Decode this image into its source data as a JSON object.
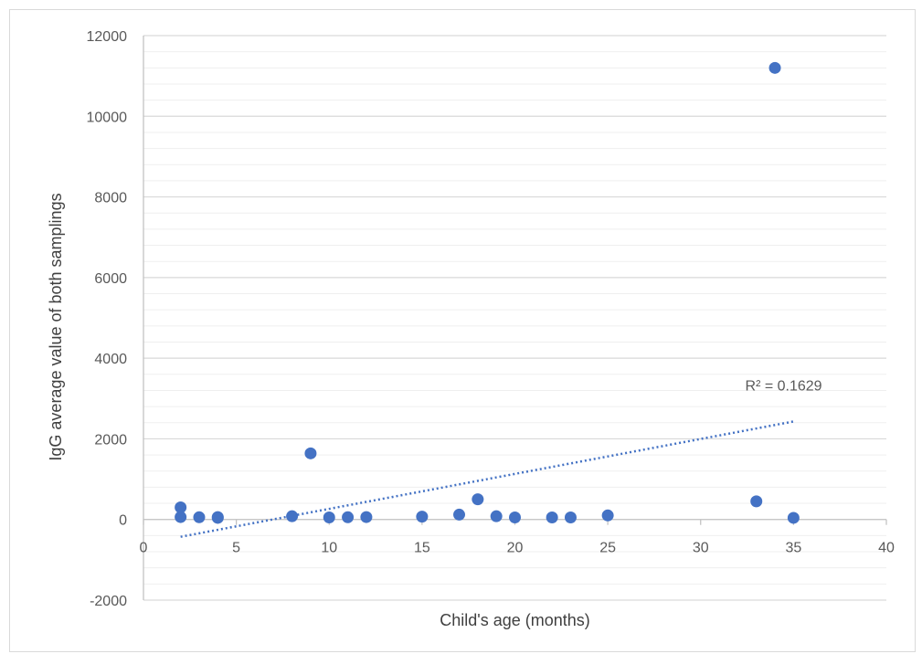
{
  "chart_data": {
    "type": "scatter",
    "xlabel": "Child's age (months)",
    "ylabel": "IgG average value of both samplings",
    "xlim": [
      0,
      40
    ],
    "ylim": [
      -2000,
      12000
    ],
    "x_ticks": [
      0,
      5,
      10,
      15,
      20,
      25,
      30,
      35,
      40
    ],
    "y_ticks": [
      -2000,
      0,
      2000,
      4000,
      6000,
      8000,
      10000,
      12000
    ],
    "x_tick_labels": [
      "0",
      "5",
      "10",
      "15",
      "20",
      "25",
      "30",
      "35",
      "40"
    ],
    "y_tick_labels": [
      "-2000",
      "0",
      "2000",
      "4000",
      "6000",
      "8000",
      "10000",
      "12000"
    ],
    "y_minor_step": 400,
    "grid": true,
    "legend": "none",
    "series": [
      {
        "color": "#4472c4",
        "points": [
          {
            "x": 2,
            "y": 300
          },
          {
            "x": 2,
            "y": 60
          },
          {
            "x": 3,
            "y": 55
          },
          {
            "x": 4,
            "y": 60
          },
          {
            "x": 4,
            "y": 40
          },
          {
            "x": 8,
            "y": 80
          },
          {
            "x": 9,
            "y": 1640
          },
          {
            "x": 10,
            "y": 50
          },
          {
            "x": 11,
            "y": 55
          },
          {
            "x": 12,
            "y": 60
          },
          {
            "x": 15,
            "y": 70
          },
          {
            "x": 17,
            "y": 120
          },
          {
            "x": 18,
            "y": 500
          },
          {
            "x": 19,
            "y": 80
          },
          {
            "x": 20,
            "y": 50
          },
          {
            "x": 22,
            "y": 50
          },
          {
            "x": 23,
            "y": 50
          },
          {
            "x": 25,
            "y": 100
          },
          {
            "x": 33,
            "y": 450
          },
          {
            "x": 34,
            "y": 11200
          },
          {
            "x": 35,
            "y": 40
          }
        ]
      }
    ],
    "trendline": {
      "type": "linear",
      "style": "dotted",
      "color": "#4472c4",
      "x_start": 2,
      "x_end": 35,
      "y_start": -430,
      "y_end": 2430,
      "label": "R² = 0.1629"
    }
  }
}
